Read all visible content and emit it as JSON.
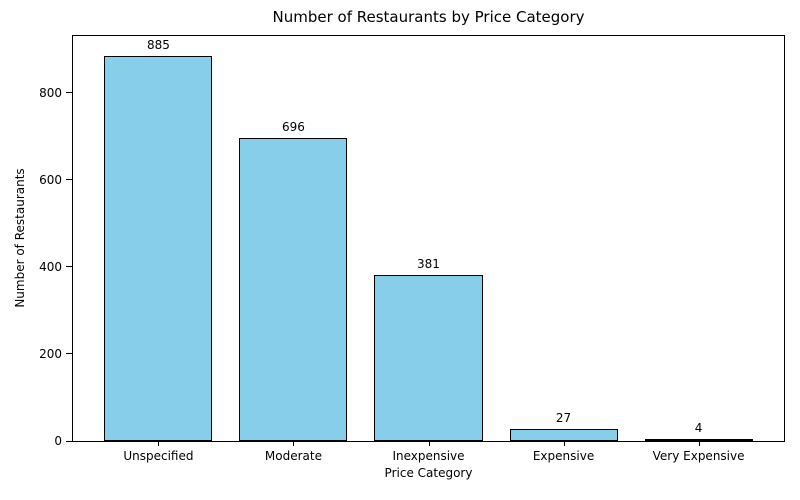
{
  "chart_data": {
    "type": "bar",
    "title": "Number of Restaurants by Price Category",
    "xlabel": "Price Category",
    "ylabel": "Number of Restaurants",
    "categories": [
      "Unspecified",
      "Moderate",
      "Inexpensive",
      "Expensive",
      "Very Expensive"
    ],
    "values": [
      885,
      696,
      381,
      27,
      4
    ],
    "bar_value_labels": [
      "885",
      "696",
      "381",
      "27",
      "4"
    ],
    "yticks": [
      0,
      200,
      400,
      600,
      800
    ],
    "ylim": [
      0,
      930
    ],
    "bar_color": "#87CEEB",
    "bar_edge_color": "#000000",
    "grid": false,
    "legend_position": "none",
    "background_color": "#ffffff"
  }
}
